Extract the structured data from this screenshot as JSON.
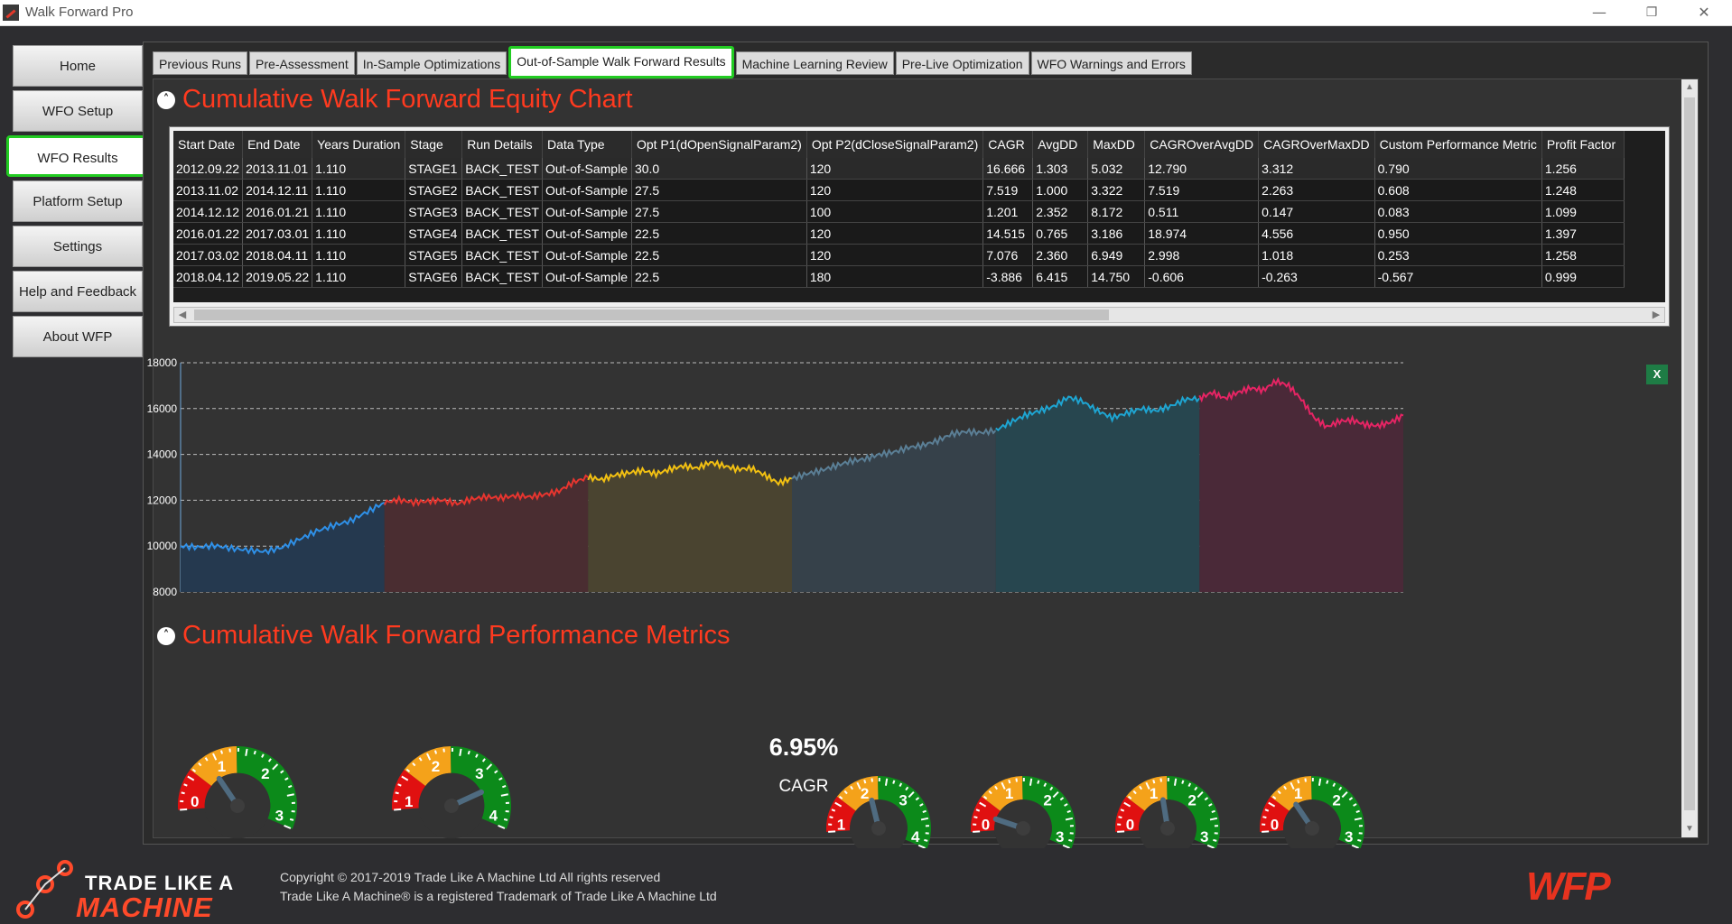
{
  "window": {
    "title": "Walk Forward Pro",
    "minimize": "—",
    "restore": "❐",
    "close": "✕"
  },
  "sidebar": {
    "items": [
      {
        "label": "Home"
      },
      {
        "label": "WFO Setup"
      },
      {
        "label": "WFO Results",
        "active": true
      },
      {
        "label": "Platform Setup"
      },
      {
        "label": "Settings"
      },
      {
        "label": "Help and Feedback"
      },
      {
        "label": "About WFP"
      }
    ]
  },
  "tabs": [
    {
      "label": "Previous Runs"
    },
    {
      "label": "Pre-Assessment"
    },
    {
      "label": "In-Sample Optimizations"
    },
    {
      "label": "Out-of-Sample Walk Forward Results",
      "active": true
    },
    {
      "label": "Machine Learning Review"
    },
    {
      "label": "Pre-Live Optimization"
    },
    {
      "label": "WFO Warnings and Errors"
    }
  ],
  "equity_section": {
    "title": "Cumulative Walk Forward Equity Chart",
    "collapse_icon": "˄"
  },
  "results_table": {
    "columns": [
      "Start Date",
      "End Date",
      "Years Duration",
      "Stage",
      "Run Details",
      "Data Type",
      "Opt P1(dOpenSignalParam2)",
      "Opt P2(dCloseSignalParam2)",
      "CAGR",
      "AvgDD",
      "MaxDD",
      "CAGROverAvgDD",
      "CAGROverMaxDD",
      "Custom Performance Metric",
      "Profit Factor"
    ],
    "rows": [
      [
        "2012.09.22",
        "2013.11.01",
        "1.110",
        "STAGE1",
        "BACK_TEST",
        "Out-of-Sample",
        "30.0",
        "120",
        "16.666",
        "1.303",
        "5.032",
        "12.790",
        "3.312",
        "0.790",
        "1.256"
      ],
      [
        "2013.11.02",
        "2014.12.11",
        "1.110",
        "STAGE2",
        "BACK_TEST",
        "Out-of-Sample",
        "27.5",
        "120",
        "7.519",
        "1.000",
        "3.322",
        "7.519",
        "2.263",
        "0.608",
        "1.248"
      ],
      [
        "2014.12.12",
        "2016.01.21",
        "1.110",
        "STAGE3",
        "BACK_TEST",
        "Out-of-Sample",
        "27.5",
        "100",
        "1.201",
        "2.352",
        "8.172",
        "0.511",
        "0.147",
        "0.083",
        "1.099"
      ],
      [
        "2016.01.22",
        "2017.03.01",
        "1.110",
        "STAGE4",
        "BACK_TEST",
        "Out-of-Sample",
        "22.5",
        "120",
        "14.515",
        "0.765",
        "3.186",
        "18.974",
        "4.556",
        "0.950",
        "1.397"
      ],
      [
        "2017.03.02",
        "2018.04.11",
        "1.110",
        "STAGE5",
        "BACK_TEST",
        "Out-of-Sample",
        "22.5",
        "120",
        "7.076",
        "2.360",
        "6.949",
        "2.998",
        "1.018",
        "0.253",
        "1.258"
      ],
      [
        "2018.04.12",
        "2019.05.22",
        "1.110",
        "STAGE6",
        "BACK_TEST",
        "Out-of-Sample",
        "22.5",
        "180",
        "-3.886",
        "6.415",
        "14.750",
        "-0.606",
        "-0.263",
        "-0.567",
        "0.999"
      ]
    ]
  },
  "chart_data": {
    "type": "area",
    "title": "",
    "xlabel": "",
    "ylabel": "",
    "ylim": [
      8000,
      18000
    ],
    "yticks": [
      8000,
      10000,
      12000,
      14000,
      16000,
      18000
    ],
    "grid": true,
    "series": [
      {
        "color": "#2e90e8",
        "fill": "#25394f",
        "values": [
          10000,
          9950,
          10020,
          9900,
          9820,
          9760,
          9950,
          10300,
          10650,
          10900,
          11100,
          11500,
          11900
        ]
      },
      {
        "color": "#e8352f",
        "fill": "#4a2d31",
        "values": [
          11900,
          12020,
          11900,
          11960,
          12000,
          11850,
          12050,
          12150,
          12100,
          12200,
          12150,
          12250,
          12400,
          12800,
          13000
        ]
      },
      {
        "color": "#f2c012",
        "fill": "#4a4430",
        "values": [
          13000,
          12900,
          13100,
          13200,
          13300,
          13150,
          13350,
          13500,
          13400,
          13650,
          13500,
          13350,
          13400,
          13100,
          12750,
          12950
        ]
      },
      {
        "color": "#5b7f96",
        "fill": "#36414a",
        "values": [
          12950,
          13150,
          13300,
          13500,
          13700,
          13800,
          14000,
          14100,
          14300,
          14400,
          14600,
          14900,
          15000,
          14950,
          15050
        ]
      },
      {
        "color": "#1ea5d2",
        "fill": "#27464f",
        "values": [
          15050,
          15400,
          15700,
          15900,
          16100,
          16500,
          16300,
          15900,
          15600,
          15800,
          16000,
          15900,
          16100,
          16400,
          16450
        ]
      },
      {
        "color": "#e62464",
        "fill": "#4a2938",
        "values": [
          16450,
          16700,
          16450,
          16700,
          16900,
          16800,
          17200,
          17000,
          16400,
          15600,
          15200,
          15450,
          15500,
          15300,
          15250,
          15400,
          15700
        ]
      }
    ]
  },
  "metrics_section": {
    "title": "Cumulative Walk Forward Performance Metrics",
    "collapse_icon": "˄"
  },
  "gauges": [
    {
      "ticks": [
        "0",
        "1",
        "2",
        "3"
      ],
      "max": 3,
      "value": 0.8
    },
    {
      "ticks": [
        "1",
        "2",
        "3",
        "4"
      ],
      "max": 4,
      "value": 3.2
    },
    {
      "ticks": [
        "1",
        "2",
        "3",
        "4"
      ],
      "max": 4,
      "value": 1.5
    },
    {
      "ticks": [
        "0",
        "1",
        "2",
        "3"
      ],
      "max": 3,
      "value": 0.2
    },
    {
      "ticks": [
        "0",
        "1",
        "2",
        "3"
      ],
      "max": 3,
      "value": 1.2
    },
    {
      "ticks": [
        "0",
        "1",
        "2",
        "3"
      ],
      "max": 3,
      "value": 0.8
    }
  ],
  "cagr": {
    "value": "6.95%",
    "label": "CAGR"
  },
  "excel_icon": "X",
  "footer": {
    "logo_line1": "TRADE LIKE A",
    "logo_line2": "MACHINE",
    "copyright": "Copyright © 2017-2019 Trade Like A Machine Ltd All rights reserved",
    "trademark": "Trade Like A Machine® is a registered Trademark of Trade Like A Machine Ltd",
    "wfp_logo": "WFP"
  }
}
